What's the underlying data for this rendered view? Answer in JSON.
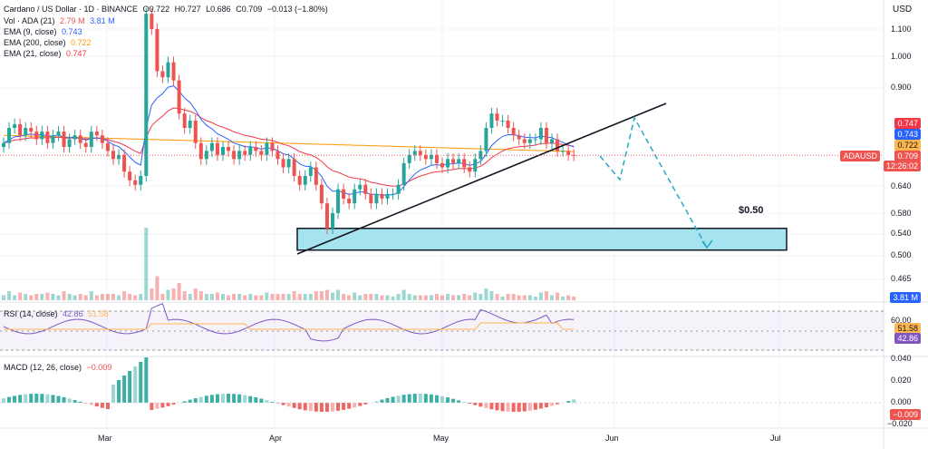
{
  "header": {
    "symbol": "Cardano / US Dollar · 1D · BINANCE",
    "o": "O0.722",
    "h": "H0.727",
    "l": "L0.686",
    "c": "C0.709",
    "change": "−0.013 (−1.80%)",
    "vol_label": "Vol · ADA (21)",
    "vol_a": "2.79 M",
    "vol_b": "3.81 M",
    "ema9_label": "EMA (9, close)",
    "ema9_val": "0.743",
    "ema200_label": "EMA (200, close)",
    "ema200_val": "0.722",
    "ema21_label": "EMA (21, close)",
    "ema21_val": "0.747"
  },
  "currency": "USD",
  "price_axis": [
    "1.100",
    "1.000",
    "0.900",
    "0.640",
    "0.580",
    "0.540",
    "0.500",
    "0.465"
  ],
  "price_labels": {
    "ema21": "0.747",
    "ema9": "0.743",
    "ema200": "0.722",
    "ticker": "ADAUSD",
    "last": "0.709",
    "countdown": "12:26:02",
    "volume": "3.81 M"
  },
  "annotation": "$0.50",
  "rsi": {
    "label": "RSI (14, close)",
    "v1": "42.86",
    "v2": "51.58",
    "axis": "60.00",
    "tag1": "51.58",
    "tag2": "42.86"
  },
  "macd": {
    "label": "MACD (12, 26, close)",
    "v": "−0.009",
    "axis": [
      "0.040",
      "0.020",
      "0.000",
      "−0.020"
    ],
    "tag": "−0.009"
  },
  "time_axis": [
    "Mar",
    "Apr",
    "May",
    "Jun",
    "Jul"
  ],
  "colors": {
    "up": "#26a69a",
    "down": "#ef5350",
    "ema9": "#2962ff",
    "ema21": "#f23645",
    "ema200": "#ff9800",
    "rsi": "#7e57c2",
    "zone": "#a5e4ee"
  },
  "chart_data": {
    "type": "candlestick",
    "title": "Cardano / US Dollar · 1D · BINANCE",
    "ohlc_last": {
      "open": 0.722,
      "high": 0.727,
      "low": 0.686,
      "close": 0.709
    },
    "closes": [
      0.74,
      0.78,
      0.79,
      0.76,
      0.78,
      0.77,
      0.75,
      0.77,
      0.74,
      0.76,
      0.77,
      0.73,
      0.75,
      0.76,
      0.74,
      0.73,
      0.77,
      0.76,
      0.74,
      0.72,
      0.7,
      0.71,
      0.67,
      0.65,
      0.64,
      0.66,
      1.16,
      1.1,
      0.95,
      0.93,
      0.98,
      0.92,
      0.82,
      0.78,
      0.8,
      0.74,
      0.7,
      0.72,
      0.74,
      0.71,
      0.73,
      0.72,
      0.7,
      0.72,
      0.71,
      0.73,
      0.72,
      0.71,
      0.74,
      0.72,
      0.7,
      0.68,
      0.7,
      0.66,
      0.64,
      0.66,
      0.68,
      0.64,
      0.6,
      0.55,
      0.58,
      0.63,
      0.61,
      0.6,
      0.63,
      0.64,
      0.62,
      0.6,
      0.62,
      0.61,
      0.62,
      0.62,
      0.64,
      0.69,
      0.71,
      0.72,
      0.71,
      0.7,
      0.71,
      0.69,
      0.68,
      0.7,
      0.69,
      0.7,
      0.68,
      0.67,
      0.7,
      0.72,
      0.78,
      0.82,
      0.8,
      0.8,
      0.78,
      0.76,
      0.75,
      0.74,
      0.75,
      0.75,
      0.78,
      0.74,
      0.75,
      0.72,
      0.72,
      0.71,
      0.709
    ],
    "ema9_last": 0.743,
    "ema21_last": 0.747,
    "ema200_last": 0.722,
    "support_zone": [
      0.51,
      0.55
    ],
    "target_label": "$0.50",
    "rsi_last": 42.86,
    "rsi_ma_last": 51.58,
    "macd_last": -0.009
  }
}
